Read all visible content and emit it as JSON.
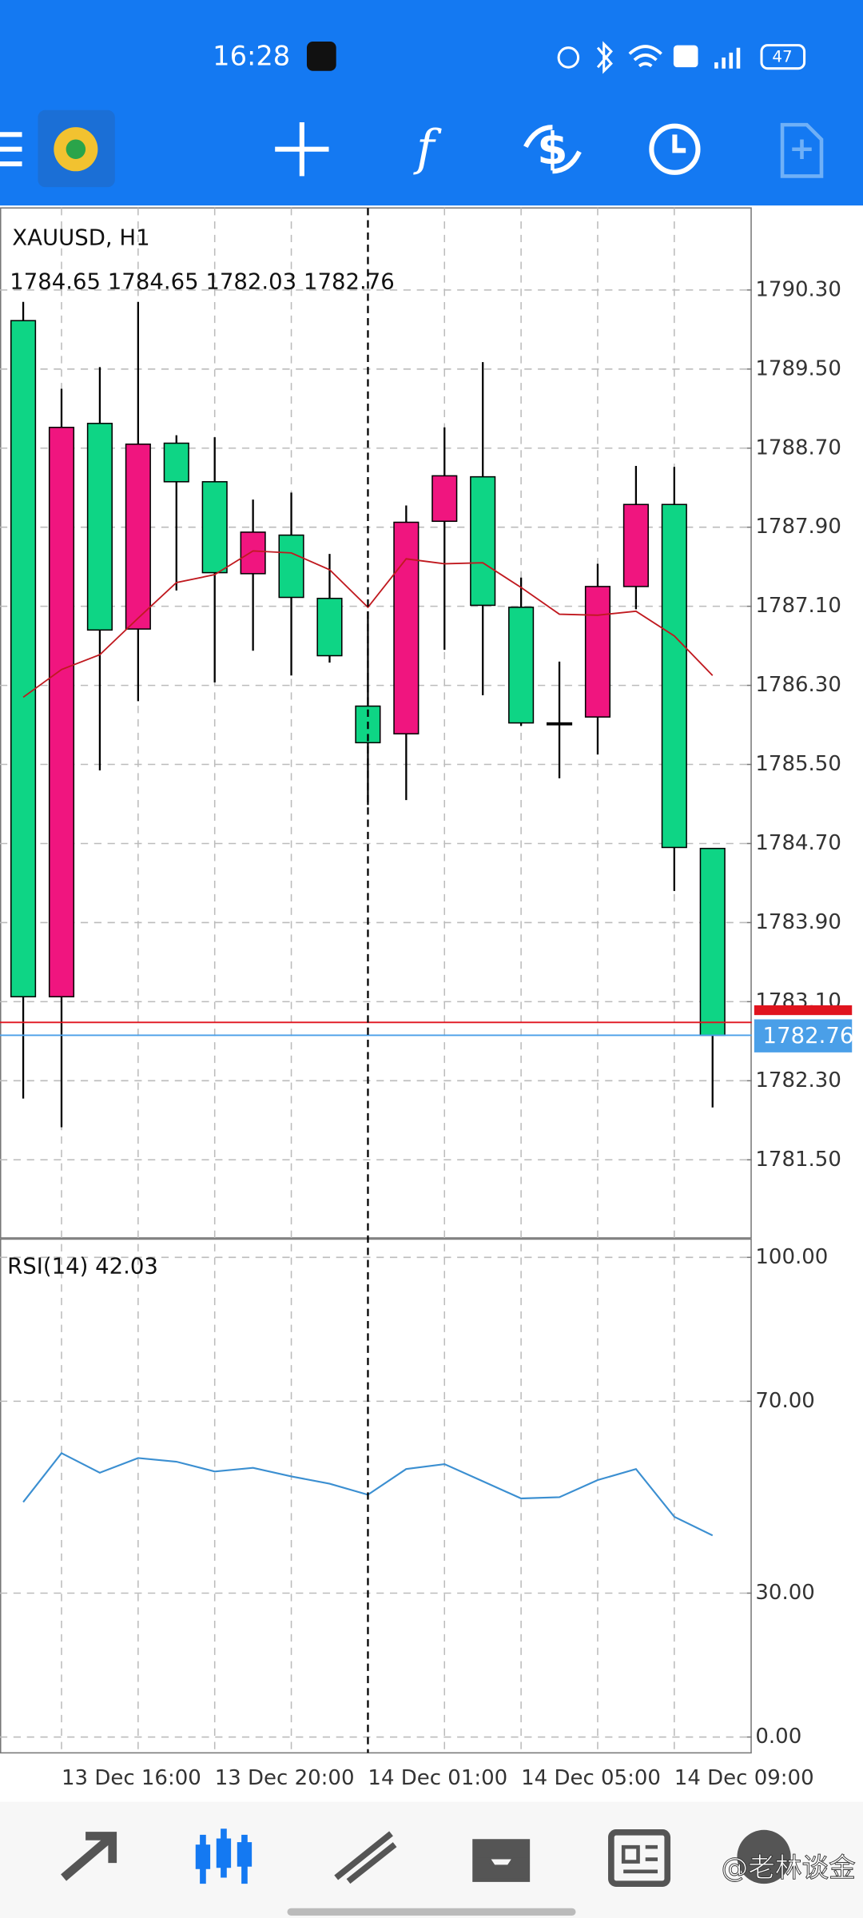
{
  "status_bar": {
    "time": "16:28",
    "battery": "47"
  },
  "watermark": "@老林谈金",
  "chart_data": [
    {
      "type": "candlestick",
      "title": "XAUUSD, H1",
      "subtitle": "1784.65 1784.65 1782.03 1782.76",
      "categories": [
        null,
        "13 Dec 16:00",
        null,
        null,
        null,
        "13 Dec 20:00",
        null,
        null,
        null,
        "14 Dec 01:00",
        null,
        null,
        null,
        "14 Dec 05:00",
        null,
        null,
        null,
        "14 Dec 09:00",
        null
      ],
      "open": [
        1789.99,
        1783.15,
        1788.95,
        1786.87,
        1788.75,
        1788.36,
        1787.43,
        1787.82,
        1787.18,
        1786.09,
        1785.81,
        1787.96,
        1788.41,
        1787.09,
        1785.92,
        1785.98,
        1787.3,
        1788.13,
        1784.65
      ],
      "high": [
        1790.18,
        1789.3,
        1789.52,
        1790.18,
        1788.83,
        1788.81,
        1788.18,
        1788.25,
        1787.63,
        1787.05,
        1788.12,
        1788.91,
        1789.57,
        1787.39,
        1786.54,
        1787.53,
        1788.52,
        1788.51,
        1784.65
      ],
      "low": [
        1782.12,
        1781.83,
        1785.44,
        1786.14,
        1787.26,
        1786.33,
        1786.65,
        1786.4,
        1786.53,
        1785.09,
        1785.14,
        1786.66,
        1786.2,
        1785.89,
        1785.36,
        1785.6,
        1787.07,
        1784.22,
        1782.03
      ],
      "close": [
        1783.15,
        1788.91,
        1786.86,
        1788.74,
        1788.36,
        1787.44,
        1787.85,
        1787.19,
        1786.6,
        1785.72,
        1787.95,
        1788.42,
        1787.11,
        1785.92,
        1785.92,
        1787.3,
        1788.13,
        1784.66,
        1782.76
      ],
      "up_color": "#f0157f",
      "down_color": "#0ed585",
      "ma_values": [
        1786.18,
        1786.46,
        1786.61,
        1786.98,
        1787.34,
        1787.42,
        1787.66,
        1787.64,
        1787.47,
        1787.09,
        1787.58,
        1787.53,
        1787.54,
        1787.29,
        1787.02,
        1787.01,
        1787.05,
        1786.8,
        1786.4
      ],
      "ma_color": "#c0191f",
      "bid": 1782.76,
      "bid_color": "#4a9fe8",
      "ask": 1782.89,
      "ask_color": "#e0141e",
      "ylim": [
        1780.71,
        1791.13
      ],
      "yticks": [
        {
          "value": 1790.3,
          "label": "1790.30"
        },
        {
          "value": 1789.5,
          "label": "1789.50"
        },
        {
          "value": 1788.7,
          "label": "1788.70"
        },
        {
          "value": 1787.9,
          "label": "1787.90"
        },
        {
          "value": 1787.1,
          "label": "1787.10"
        },
        {
          "value": 1786.3,
          "label": "1786.30"
        },
        {
          "value": 1785.5,
          "label": "1785.50"
        },
        {
          "value": 1784.7,
          "label": "1784.70"
        },
        {
          "value": 1783.9,
          "label": "1783.90"
        },
        {
          "value": 1783.1,
          "label": "1783.10"
        },
        {
          "value": 1782.3,
          "label": "1782.30"
        },
        {
          "value": 1781.5,
          "label": "1781.50"
        }
      ],
      "grid": true
    },
    {
      "type": "line",
      "title": "RSI(14) 42.03",
      "values": [
        48.98,
        59.18,
        55.1,
        58.16,
        57.4,
        55.36,
        56.12,
        54.34,
        52.81,
        50.51,
        55.87,
        56.89,
        53.32,
        49.74,
        50.0,
        53.57,
        55.87,
        45.92,
        42.03
      ],
      "color": "#3b8fd1",
      "ylim": [
        -3.3,
        103.8
      ],
      "yticks": [
        {
          "value": 100,
          "label": "100.00"
        },
        {
          "value": 70,
          "label": "70.00"
        },
        {
          "value": 30,
          "label": "30.00"
        },
        {
          "value": 0,
          "label": "0.00"
        }
      ],
      "grid": true
    }
  ]
}
